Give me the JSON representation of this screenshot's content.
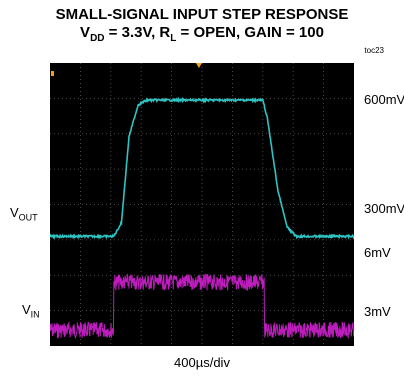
{
  "chart_data": {
    "type": "line",
    "title_line1": "SMALL-SIGNAL INPUT STEP RESPONSE",
    "title_line2": {
      "vdd_label": "V",
      "vdd_sub": "DD",
      "vdd_value": " = 3.3V, R",
      "rl_sub": "L",
      "rest": " = OPEN, GAIN = 100"
    },
    "figure_id": "toc23",
    "x_scale_label": "400µs/div",
    "left_labels": [
      {
        "main": "V",
        "sub": "OUT"
      },
      {
        "main": "V",
        "sub": "IN"
      }
    ],
    "right_labels": [
      "600mV",
      "300mV",
      "6mV",
      "3mV"
    ],
    "divisions": {
      "x": 10,
      "y": 8
    },
    "series": [
      {
        "name": "VOUT",
        "color": "#2ec4c4",
        "units": "mV",
        "x_div": [
          0,
          2.1,
          2.35,
          2.6,
          2.9,
          3.2,
          6.0,
          7.0,
          7.15,
          7.5,
          7.8,
          8.1,
          10.0
        ],
        "values": [
          300,
          300,
          330,
          520,
          590,
          600,
          600,
          600,
          560,
          400,
          320,
          300,
          300
        ]
      },
      {
        "name": "VIN",
        "color": "#d020d0",
        "units": "mV",
        "x_div": [
          0,
          2.1,
          2.1,
          7.05,
          7.05,
          10.0
        ],
        "values": [
          3,
          3,
          6,
          6,
          3,
          3
        ]
      }
    ]
  }
}
